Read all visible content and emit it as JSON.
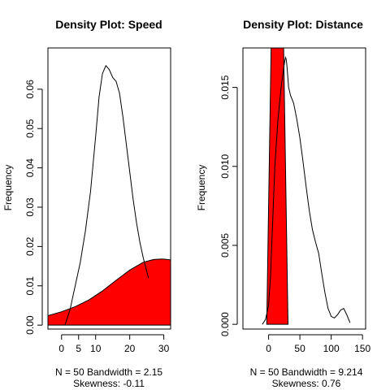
{
  "chart_data": [
    {
      "type": "line",
      "title": "Density Plot: Speed",
      "ylabel": "Frequency",
      "xlim": [
        -4,
        32
      ],
      "ylim": [
        -0.001,
        0.0705
      ],
      "xticks": [
        0,
        5,
        10,
        20,
        30
      ],
      "yticks": [
        0.0,
        0.01,
        0.02,
        0.03,
        0.04,
        0.05,
        0.06
      ],
      "ytick_labels": [
        "0.00",
        "0.01",
        "0.02",
        "0.03",
        "0.04",
        "0.05",
        "0.06"
      ],
      "subtitle_1": "N = 50   Bandwidth = 2.15",
      "subtitle_2": "Skewness: -0.11",
      "density_line": {
        "x": [
          1.0,
          2.5,
          4.0,
          5.5,
          7.0,
          8.5,
          10.0,
          11.0,
          12.0,
          13.0,
          14.0,
          15.0,
          16.0,
          17.0,
          18.0,
          19.0,
          20.0,
          21.0,
          22.0,
          23.0,
          24.0,
          25.5
        ],
        "y": [
          0.0,
          0.004,
          0.01,
          0.016,
          0.024,
          0.034,
          0.048,
          0.058,
          0.064,
          0.066,
          0.065,
          0.063,
          0.062,
          0.059,
          0.053,
          0.046,
          0.039,
          0.032,
          0.026,
          0.021,
          0.017,
          0.012
        ]
      },
      "filled_curve": {
        "color": "#ff0000",
        "x": [
          -4,
          0,
          4,
          8,
          12,
          16,
          20,
          24,
          27,
          29,
          30,
          32
        ],
        "y": [
          0.0024,
          0.0034,
          0.0047,
          0.0064,
          0.0087,
          0.0114,
          0.014,
          0.016,
          0.0167,
          0.0168,
          0.0168,
          0.0166
        ]
      }
    },
    {
      "type": "line",
      "title": "Density Plot: Distance",
      "ylabel": "Frequency",
      "xlim": [
        -41,
        155
      ],
      "ylim": [
        -0.0003,
        0.0175
      ],
      "xticks": [
        0,
        50,
        100,
        150
      ],
      "yticks": [
        0.0,
        0.005,
        0.01,
        0.015
      ],
      "ytick_labels": [
        "0.000",
        "0.005",
        "0.010",
        "0.015"
      ],
      "subtitle_1": "N = 50   Bandwidth = 9.214",
      "subtitle_2": "Skewness: 0.76",
      "density_line": {
        "x": [
          -10,
          -5,
          0,
          3,
          6,
          10,
          15,
          20,
          24,
          26,
          27,
          28,
          29,
          30,
          32,
          35,
          40,
          45,
          50,
          55,
          60,
          65,
          70,
          75,
          80,
          85,
          90,
          95,
          100,
          105,
          110,
          115,
          120,
          125,
          130
        ],
        "y": [
          0.0,
          0.0003,
          0.0012,
          0.003,
          0.006,
          0.01,
          0.013,
          0.015,
          0.0162,
          0.0167,
          0.0169,
          0.0168,
          0.0165,
          0.016,
          0.015,
          0.0145,
          0.014,
          0.013,
          0.0118,
          0.0103,
          0.0087,
          0.0072,
          0.006,
          0.0052,
          0.0045,
          0.0032,
          0.002,
          0.001,
          0.0005,
          0.0004,
          0.0006,
          0.0009,
          0.001,
          0.0006,
          0.0001
        ]
      },
      "filled_curve": {
        "color": "#ff0000",
        "x": [
          -3,
          4,
          24,
          31
        ],
        "y": [
          0.0,
          0.0175,
          0.0175,
          0.0
        ]
      }
    }
  ]
}
